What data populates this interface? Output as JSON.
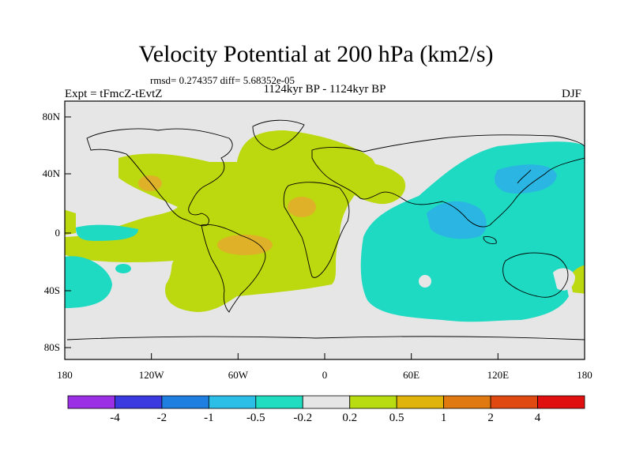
{
  "title": "Velocity Potential at 200 hPa (km2/s)",
  "stats": "rmsd= 0.274357 diff= 5.68352e-05",
  "left_label": "Expt = tFmcZ-tEvtZ",
  "center_label": "1124kyr BP - 1124kyr BP",
  "right_label": "DJF",
  "lat_ticks": [
    "80N",
    "40N",
    "0",
    "40S",
    "80S"
  ],
  "lon_ticks": [
    "180",
    "120W",
    "60W",
    "0",
    "60E",
    "120E",
    "180"
  ],
  "colorbar": {
    "labels": [
      "-4",
      "-2",
      "-1",
      "-0.5",
      "-0.2",
      "0.2",
      "0.5",
      "1",
      "2",
      "4"
    ],
    "colors": [
      "#9b2fe6",
      "#3a3ae0",
      "#1f7fe0",
      "#2bbfe8",
      "#20dcc0",
      "#e6e6e6",
      "#b8dc10",
      "#e0b40a",
      "#e07a10",
      "#e04a10",
      "#e01010"
    ]
  },
  "colors": {
    "land_bg": "#e6e6e6",
    "neutral": "#e6e6e6",
    "green": "#bcd80e",
    "orange": "#dfb128",
    "cyan": "#1fdac2",
    "blue": "#2ab5e2"
  }
}
